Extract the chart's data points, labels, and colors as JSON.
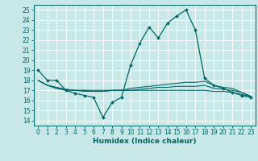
{
  "xlabel": "Humidex (Indice chaleur)",
  "bg_color": "#c8e8e8",
  "grid_color": "#ffffff",
  "line_color": "#006666",
  "xlim": [
    -0.5,
    23.5
  ],
  "ylim": [
    13.5,
    25.5
  ],
  "yticks": [
    14,
    15,
    16,
    17,
    18,
    19,
    20,
    21,
    22,
    23,
    24,
    25
  ],
  "xticks": [
    0,
    1,
    2,
    3,
    4,
    5,
    6,
    7,
    8,
    9,
    10,
    11,
    12,
    13,
    14,
    15,
    16,
    17,
    18,
    19,
    20,
    21,
    22,
    23
  ],
  "line1_x": [
    0,
    1,
    2,
    3,
    4,
    5,
    6,
    7,
    8,
    9,
    10,
    11,
    12,
    13,
    14,
    15,
    16,
    17,
    18,
    19,
    20,
    21,
    22,
    23
  ],
  "line1_y": [
    19,
    18,
    18,
    17,
    16.7,
    16.5,
    16.3,
    14.3,
    15.8,
    16.3,
    19.5,
    21.7,
    23.3,
    22.2,
    23.7,
    24.4,
    25.0,
    23.0,
    18.2,
    17.5,
    17.2,
    16.8,
    16.5,
    16.3
  ],
  "line2_x": [
    0,
    1,
    2,
    3,
    4,
    5,
    6,
    7,
    8,
    9,
    10,
    11,
    12,
    13,
    14,
    15,
    16,
    17,
    18,
    19,
    20,
    21,
    22,
    23
  ],
  "line2_y": [
    18,
    17.5,
    17.2,
    17.0,
    17.0,
    17.0,
    17.0,
    17.0,
    17.0,
    17.0,
    17.2,
    17.3,
    17.4,
    17.5,
    17.6,
    17.7,
    17.8,
    17.8,
    17.9,
    17.5,
    17.3,
    17.2,
    16.8,
    16.4
  ],
  "line3_x": [
    0,
    1,
    2,
    3,
    4,
    5,
    6,
    7,
    8,
    9,
    10,
    11,
    12,
    13,
    14,
    15,
    16,
    17,
    18,
    19,
    20,
    21,
    22,
    23
  ],
  "line3_y": [
    18,
    17.5,
    17.2,
    17.1,
    17.0,
    16.9,
    16.9,
    16.9,
    17.0,
    17.0,
    17.0,
    17.1,
    17.2,
    17.3,
    17.3,
    17.4,
    17.4,
    17.4,
    17.5,
    17.2,
    17.1,
    17.0,
    16.8,
    16.4
  ],
  "line4_x": [
    0,
    1,
    2,
    3,
    4,
    5,
    6,
    7,
    8,
    9,
    10,
    11,
    12,
    13,
    14,
    15,
    16,
    17,
    18,
    19,
    20,
    21,
    22,
    23
  ],
  "line4_y": [
    18,
    17.5,
    17.3,
    17.1,
    17.0,
    17.0,
    16.9,
    16.9,
    17.0,
    17.0,
    17.0,
    17.0,
    17.0,
    17.0,
    17.0,
    17.0,
    17.0,
    17.0,
    17.0,
    16.9,
    16.9,
    16.8,
    16.6,
    16.4
  ],
  "tick_fontsize": 5.5,
  "xlabel_fontsize": 6.5
}
